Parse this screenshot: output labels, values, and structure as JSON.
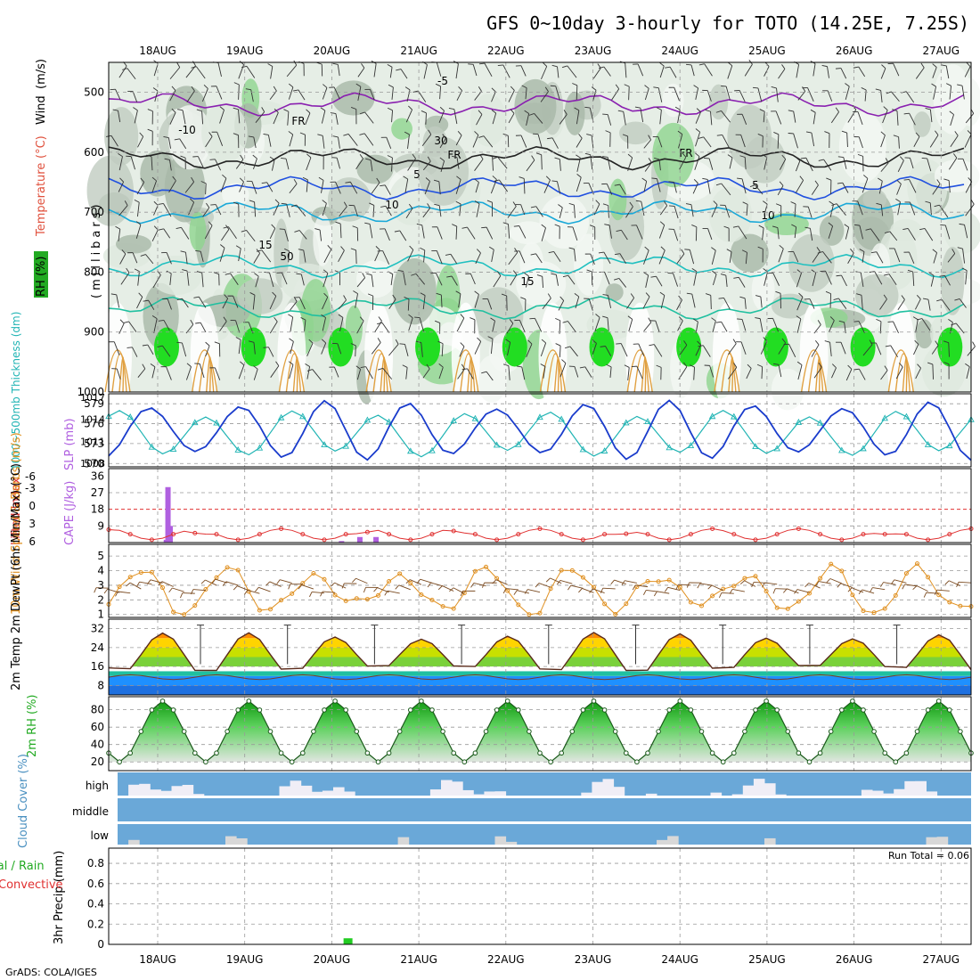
{
  "title": "GFS 0~10day 3-hourly for TOTO (14.25E, 7.25S)",
  "footer": "GrADS: COLA/IGES",
  "run_total": "Run Total = 0.06",
  "colors": {
    "wind_label": "#000000",
    "temperature": "#e0503c",
    "rh": "#22aa22",
    "slp": "#1a3ccc",
    "thickness": "#20b4b4",
    "lifted_index": "#e03030",
    "cape": "#b060e0",
    "wind10m": "#e09020",
    "cloud_bg": "#6aa8d8",
    "cloud_fill": "#f0eef6",
    "precip": "#22cc22"
  },
  "chart_data": [
    {
      "type": "heatmap",
      "panel": "upper-air",
      "dates": [
        "18AUG",
        "19AUG",
        "20AUG",
        "21AUG",
        "22AUG",
        "23AUG",
        "24AUG",
        "25AUG",
        "26AUG",
        "27AUG"
      ],
      "ylabel_parts": [
        "RH (%)",
        "Temperature",
        "(°C)",
        "Wind",
        "(m/s)"
      ],
      "ylabel_unit": "(millibars)",
      "y_ticks": [
        500,
        600,
        700,
        800,
        900,
        1000
      ],
      "ylim": [
        1000,
        450
      ],
      "contour_labels": [
        "-5",
        "FR",
        "FR",
        "FR",
        "5",
        "5",
        "10",
        "10",
        "15",
        "15",
        "50",
        "30",
        "-10"
      ]
    },
    {
      "type": "line",
      "panel": "thickness-slp",
      "ylabel_left": "1000~500mb Thickness (dm)",
      "ylabel_right": "SLP (mb)",
      "left_ticks": [
        579,
        576,
        573,
        570
      ],
      "right_ticks": [
        1017,
        1014,
        1011,
        1008
      ],
      "left_ylim": [
        569.5,
        580.5
      ],
      "right_ylim": [
        1007.5,
        1017.5
      ]
    },
    {
      "type": "bar",
      "panel": "cape-li",
      "ylabel_left": "Lifted Index",
      "ylabel_right": "CAPE (J/kg)",
      "left_ticks": [
        "-6",
        "-3",
        "0",
        "3",
        "6"
      ],
      "right_ticks": [
        36,
        27,
        18,
        9
      ],
      "cape_bars": [
        {
          "x": 5.35,
          "v": 1.5
        },
        {
          "x": 5.5,
          "v": 30
        },
        {
          "x": 5.7,
          "v": 9
        },
        {
          "x": 21.6,
          "v": 0.8
        },
        {
          "x": 23.3,
          "v": 3
        },
        {
          "x": 24.8,
          "v": 3
        }
      ]
    },
    {
      "type": "line",
      "panel": "wind10m",
      "ylabel": "10m Wind Speed & Barbs (m/s)",
      "y_ticks": [
        5,
        4,
        3,
        2,
        1
      ],
      "ylim": [
        0.8,
        5.8
      ]
    },
    {
      "type": "area",
      "panel": "temp2m",
      "ylabel": "2m Temp 2m DewPt (6hr Min/Max) (°C)",
      "y_ticks": [
        32,
        24,
        16,
        8
      ],
      "ylim": [
        4,
        36
      ]
    },
    {
      "type": "area",
      "panel": "rh2m",
      "ylabel": "2m RH (%)",
      "y_ticks": [
        80,
        60,
        40,
        20
      ],
      "ylim": [
        10,
        95
      ]
    },
    {
      "type": "bar",
      "panel": "cloud",
      "ylabel": "Cloud Cover (%)",
      "levels": [
        "high",
        "middle",
        "low"
      ]
    },
    {
      "type": "bar",
      "panel": "precip",
      "ylabel": "3hr Precip (mm)",
      "legend": [
        "Total / Rain",
        "Convective"
      ],
      "y_ticks": [
        "0.8",
        "0.6",
        "0.4",
        "0.2",
        "0"
      ],
      "ylim": [
        0,
        0.95
      ],
      "bars": [
        {
          "x": 22.2,
          "v": 0.06
        }
      ]
    }
  ]
}
